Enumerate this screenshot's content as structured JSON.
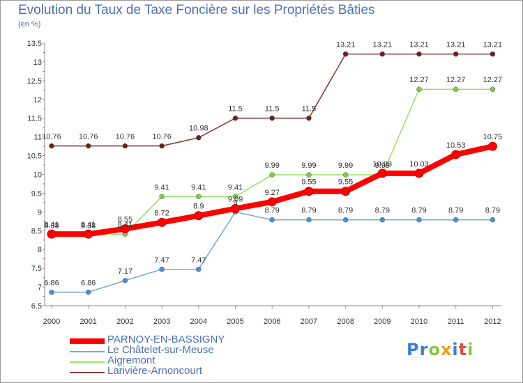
{
  "header": {
    "title": "Evolution du Taux de Taxe Foncière sur les Propriétés Bâties",
    "subtitle": "(en %)"
  },
  "chart_data": {
    "type": "line",
    "x": [
      "2000",
      "2001",
      "2002",
      "2003",
      "2004",
      "2005",
      "2006",
      "2007",
      "2008",
      "2009",
      "2010",
      "2011",
      "2012"
    ],
    "ylim": [
      6.5,
      13.5
    ],
    "yticks": [
      "6.5",
      "7",
      "7.5",
      "8",
      "8.5",
      "9",
      "9.5",
      "10",
      "10.5",
      "11",
      "11.5",
      "12",
      "12.5",
      "13",
      "13.5"
    ],
    "grid": false,
    "legend_position": "bottom-left",
    "series": [
      {
        "name": "PARNOY-EN-BASSIGNY",
        "color": "#ff0000",
        "marker_color": "#ff0000",
        "values": [
          8.41,
          8.41,
          8.55,
          8.72,
          8.9,
          9.09,
          9.27,
          9.55,
          9.55,
          10.03,
          10.03,
          10.53,
          10.75
        ],
        "labels": [
          "8.41",
          "8.41",
          "8.55",
          "8.72",
          "8.9",
          "9.09",
          "9.27",
          "9.55",
          "9.55",
          "10.03",
          "10.03",
          "10.53",
          "10.75"
        ]
      },
      {
        "name": "Le Châtelet-sur-Meuse",
        "color": "#7da8d8",
        "marker_color": "#4a8fd4",
        "values": [
          6.86,
          6.86,
          7.17,
          7.47,
          7.47,
          9.0,
          8.79,
          8.79,
          8.79,
          8.79,
          8.79,
          8.79,
          8.79
        ],
        "labels": [
          "6.86",
          "6.86",
          "7.17",
          "7.47",
          "7.47",
          "9",
          "8.79",
          "8.79",
          "8.79",
          "8.79",
          "8.79",
          "8.79",
          "8.79"
        ]
      },
      {
        "name": "Aigremont",
        "color": "#9ee06a",
        "marker_color": "#7ad040",
        "values": [
          8.38,
          8.38,
          8.41,
          9.41,
          9.41,
          9.41,
          9.99,
          9.99,
          9.99,
          9.99,
          12.27,
          12.27,
          12.27
        ],
        "labels": [
          "8.38",
          "8.38",
          "8.41",
          "9.41",
          "9.41",
          "9.41",
          "9.99",
          "9.99",
          "9.99",
          "9.99",
          "12.27",
          "12.27",
          "12.27"
        ]
      },
      {
        "name": "Larivière-Arnoncourt",
        "color": "#8b3a3a",
        "marker_color": "#6b1f1f",
        "values": [
          10.76,
          10.76,
          10.76,
          10.76,
          10.98,
          11.5,
          11.5,
          11.5,
          13.21,
          13.21,
          13.21,
          13.21,
          13.21
        ],
        "labels": [
          "10.76",
          "10.76",
          "10.76",
          "10.76",
          "10.98",
          "11.5",
          "11.5",
          "11.5",
          "13.21",
          "13.21",
          "13.21",
          "13.21",
          "13.21"
        ]
      }
    ]
  },
  "legend": {
    "items": [
      {
        "label": "PARNOY-EN-BASSIGNY",
        "color": "#ff0000",
        "text_color": "#4a6fb5"
      },
      {
        "label": "Le Châtelet-sur-Meuse",
        "color": "#7da8d8",
        "text_color": "#4a6fb5"
      },
      {
        "label": "Aigremont",
        "color": "#9ee06a",
        "text_color": "#4a6fb5"
      },
      {
        "label": "Larivière-Arnoncourt",
        "color": "#8b3a3a",
        "text_color": "#4a6fb5"
      }
    ]
  },
  "logo": {
    "letters": [
      {
        "ch": "P",
        "color": "#3a7fd0"
      },
      {
        "ch": "r",
        "color": "#3a7fd0"
      },
      {
        "ch": "o",
        "color": "#8bc53f"
      },
      {
        "ch": "x",
        "color": "#f39c12"
      },
      {
        "ch": "i",
        "color": "#3a7fd0"
      },
      {
        "ch": "t",
        "color": "#e74c3c"
      },
      {
        "ch": "i",
        "color": "#8bc53f"
      }
    ]
  }
}
